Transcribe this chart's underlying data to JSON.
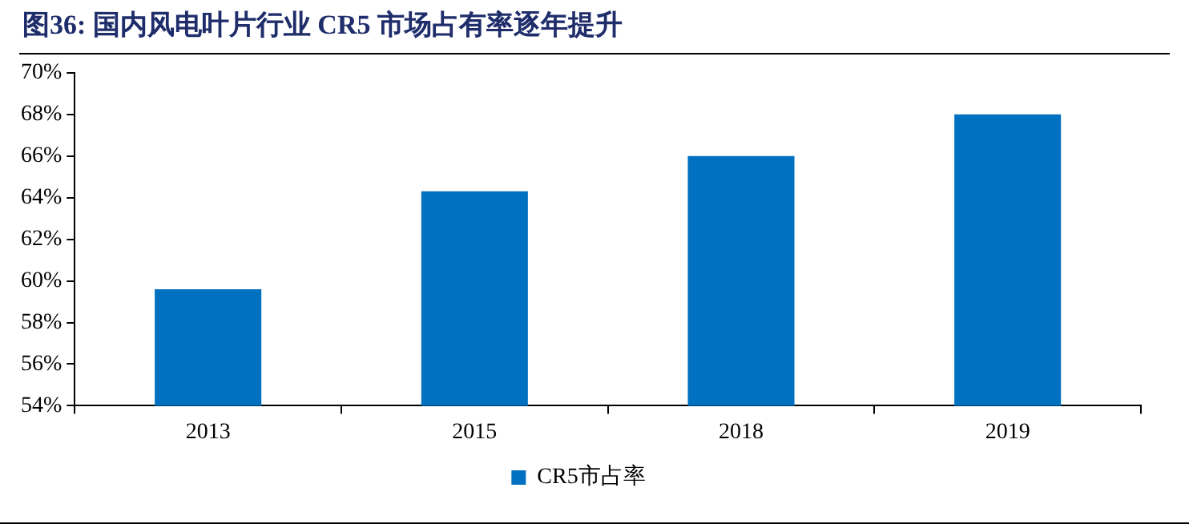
{
  "chart_data": {
    "type": "bar",
    "title": "图36:  国内风电叶片行业 CR5 市场占有率逐年提升",
    "categories": [
      "2013",
      "2015",
      "2018",
      "2019"
    ],
    "series": [
      {
        "name": "CR5市占率",
        "color": "#0070c0",
        "values": [
          59.6,
          64.3,
          66.0,
          68.0
        ]
      }
    ],
    "ylim": [
      54,
      70
    ],
    "yticks": [
      {
        "value": 54,
        "label": "54%"
      },
      {
        "value": 56,
        "label": "56%"
      },
      {
        "value": 58,
        "label": "58%"
      },
      {
        "value": 60,
        "label": "60%"
      },
      {
        "value": 62,
        "label": "62%"
      },
      {
        "value": 64,
        "label": "64%"
      },
      {
        "value": 66,
        "label": "66%"
      },
      {
        "value": 68,
        "label": "68%"
      },
      {
        "value": 70,
        "label": "70%"
      }
    ],
    "grid": false,
    "legend": "bottom"
  }
}
